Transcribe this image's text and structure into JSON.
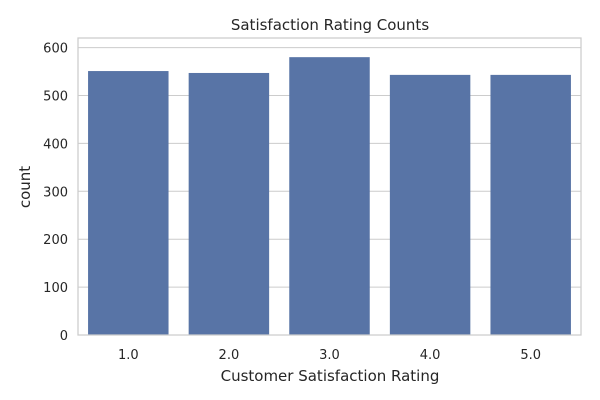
{
  "chart_data": {
    "type": "bar",
    "title": "Satisfaction Rating Counts",
    "xlabel": "Customer Satisfaction Rating",
    "ylabel": "count",
    "categories": [
      "1.0",
      "2.0",
      "3.0",
      "4.0",
      "5.0"
    ],
    "values": [
      551,
      547,
      580,
      543,
      543
    ],
    "ylim": [
      0,
      620
    ],
    "yticks": [
      0,
      100,
      200,
      300,
      400,
      500,
      600
    ],
    "grid": true,
    "bar_color": "#5874a6"
  }
}
